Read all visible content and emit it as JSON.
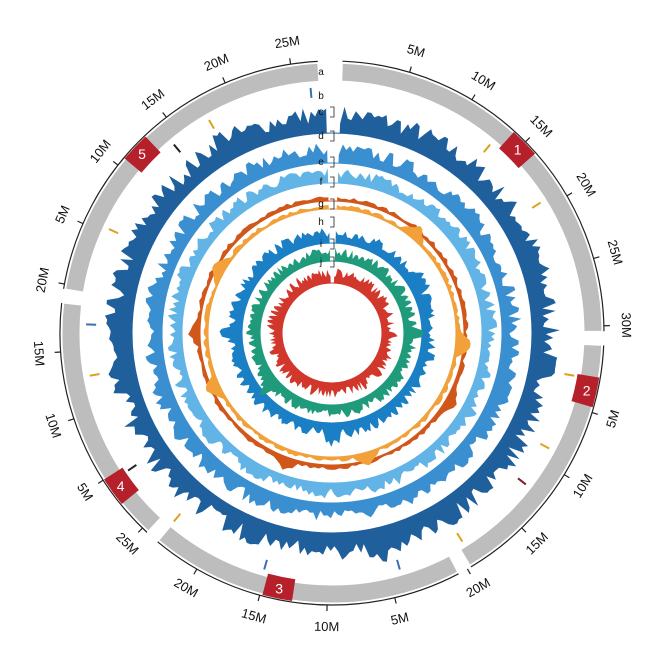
{
  "figure": {
    "track_letters": [
      "a",
      "b",
      "c",
      "d",
      "e",
      "f",
      "g",
      "h",
      "i",
      "j"
    ],
    "chromosomes": [
      {
        "label": "1",
        "length_mb": 30.4,
        "ticks": [
          "5M",
          "10M",
          "15M",
          "20M",
          "25M",
          "30M"
        ],
        "centromere_mb": 15.0
      },
      {
        "label": "2",
        "length_mb": 19.7,
        "ticks": [
          "5M",
          "10M",
          "15M"
        ],
        "centromere_mb": 3.5
      },
      {
        "label": "3",
        "length_mb": 23.5,
        "ticks": [
          "5M",
          "10M",
          "15M",
          "20M"
        ],
        "centromere_mb": 13.7
      },
      {
        "label": "4",
        "length_mb": 18.6,
        "ticks": [
          "5M",
          "10M",
          "15M"
        ],
        "centromere_mb": 3.9
      },
      {
        "label": "5",
        "length_mb": 27.0,
        "ticks": [
          "5M",
          "10M",
          "15M",
          "20M",
          "25M"
        ],
        "centromere_mb": 11.8
      }
    ],
    "tick_list_bottom": [
      "20M"
    ],
    "extra_ticks": {
      "2": [
        "20M"
      ],
      "3": [
        "25M"
      ],
      "4": [
        "20M"
      ]
    },
    "colors": {
      "ideogram": "#bdbdbd",
      "centromere": "#b5202b",
      "track_c": "#1f5f9c",
      "track_d": "#3a8fd0",
      "track_e": "#62b4e6",
      "track_f": "#d1561a",
      "track_g": "#f2a03a",
      "track_h": "#1a7fc4",
      "track_i": "#1f9a7a",
      "track_j": "#d2372b"
    }
  }
}
